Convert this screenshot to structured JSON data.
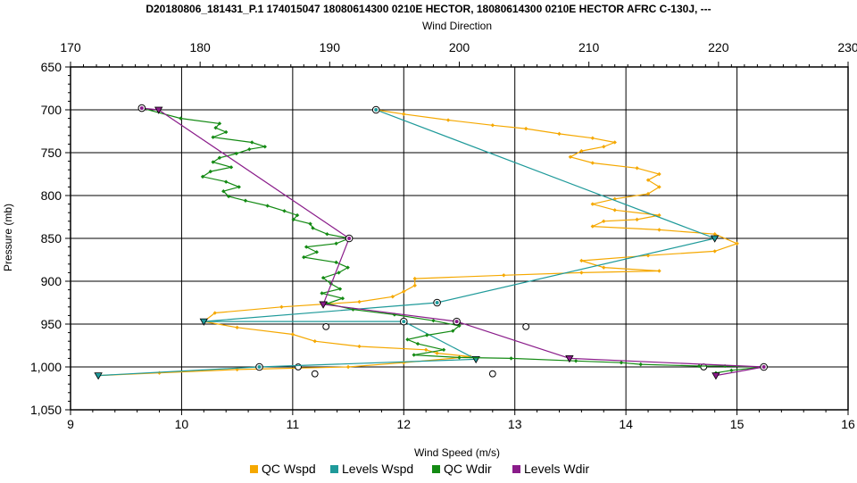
{
  "chart_data": {
    "type": "line",
    "title": "D20180806_181431_P.1 174015047 18080614300 0210E HECTOR, 18080614300 0210E HECTOR AFRC C-130J, ---",
    "x_bottom": {
      "label": "Wind Speed (m/s)",
      "range": [
        9,
        16
      ],
      "ticks": [
        "9",
        "10",
        "11",
        "12",
        "13",
        "14",
        "15",
        "16"
      ]
    },
    "x_top": {
      "label": "Wind Direction",
      "range": [
        170,
        230
      ],
      "ticks": [
        "170",
        "180",
        "190",
        "200",
        "210",
        "220",
        "230"
      ]
    },
    "y": {
      "label": "Pressure (mb)",
      "range": [
        650,
        1050
      ],
      "inverted": true,
      "ticks": [
        "650",
        "700",
        "750",
        "800",
        "850",
        "900",
        "950",
        "1,000",
        "1,050"
      ]
    },
    "grid": true,
    "legend_position": "bottom",
    "series": [
      {
        "name": "QC Wspd",
        "axis": "bottom",
        "color": "#f5a800",
        "points": [
          [
            11.75,
            700
          ],
          [
            12.0,
            705
          ],
          [
            12.4,
            712
          ],
          [
            12.8,
            718
          ],
          [
            13.1,
            722
          ],
          [
            13.4,
            728
          ],
          [
            13.7,
            733
          ],
          [
            13.9,
            738
          ],
          [
            13.8,
            743
          ],
          [
            13.6,
            748
          ],
          [
            13.5,
            755
          ],
          [
            13.7,
            762
          ],
          [
            14.1,
            768
          ],
          [
            14.3,
            775
          ],
          [
            14.2,
            782
          ],
          [
            14.3,
            790
          ],
          [
            14.2,
            798
          ],
          [
            13.9,
            804
          ],
          [
            13.7,
            810
          ],
          [
            13.9,
            817
          ],
          [
            14.3,
            823
          ],
          [
            14.1,
            828
          ],
          [
            13.8,
            830
          ],
          [
            13.7,
            836
          ],
          [
            14.3,
            840
          ],
          [
            14.8,
            845
          ],
          [
            15.0,
            856
          ],
          [
            14.8,
            865
          ],
          [
            14.2,
            870
          ],
          [
            13.6,
            876
          ],
          [
            13.8,
            884
          ],
          [
            14.3,
            888
          ],
          [
            13.6,
            890
          ],
          [
            12.9,
            893
          ],
          [
            12.1,
            897
          ],
          [
            12.1,
            905
          ],
          [
            12.0,
            912
          ],
          [
            11.9,
            918
          ],
          [
            11.6,
            924
          ],
          [
            10.9,
            930
          ],
          [
            10.3,
            937
          ],
          [
            10.2,
            947
          ],
          [
            10.5,
            954
          ],
          [
            11.0,
            962
          ],
          [
            11.2,
            970
          ],
          [
            11.6,
            976
          ],
          [
            12.2,
            980
          ],
          [
            12.3,
            984
          ],
          [
            12.6,
            988
          ],
          [
            12.0,
            995
          ],
          [
            11.5,
            1000
          ],
          [
            10.5,
            1003
          ],
          [
            9.8,
            1007
          ],
          [
            9.25,
            1010
          ]
        ],
        "open_markers": [
          [
            11.3,
            953
          ],
          [
            13.1,
            953
          ],
          [
            11.05,
            1000
          ],
          [
            11.2,
            1008
          ],
          [
            12.8,
            1008
          ],
          [
            14.7,
            1000
          ]
        ]
      },
      {
        "name": "Levels Wspd",
        "axis": "bottom",
        "color": "#1f9a9a",
        "points": [
          [
            11.75,
            700
          ],
          [
            14.8,
            850
          ],
          [
            12.3,
            925
          ],
          [
            10.2,
            947
          ],
          [
            12.0,
            947
          ],
          [
            12.65,
            991
          ],
          [
            10.7,
            1000
          ],
          [
            9.25,
            1010
          ]
        ]
      },
      {
        "name": "QC Wdir",
        "axis": "top",
        "color": "#138a13",
        "points": [
          [
            175.5,
            698
          ],
          [
            178.5,
            710
          ],
          [
            181.5,
            716
          ],
          [
            181.2,
            721
          ],
          [
            182.0,
            726
          ],
          [
            181.0,
            732
          ],
          [
            184.0,
            738
          ],
          [
            185.0,
            743
          ],
          [
            183.8,
            746
          ],
          [
            182.8,
            751
          ],
          [
            181.5,
            756
          ],
          [
            181.0,
            761
          ],
          [
            182.4,
            767
          ],
          [
            180.8,
            772
          ],
          [
            180.2,
            778
          ],
          [
            182.0,
            784
          ],
          [
            183.0,
            790
          ],
          [
            181.8,
            795
          ],
          [
            182.2,
            801
          ],
          [
            183.5,
            806
          ],
          [
            185.2,
            812
          ],
          [
            186.5,
            818
          ],
          [
            187.5,
            823
          ],
          [
            187.2,
            828
          ],
          [
            188.5,
            833
          ],
          [
            188.7,
            838
          ],
          [
            189.8,
            845
          ],
          [
            191.5,
            850
          ],
          [
            190.5,
            856
          ],
          [
            188.2,
            860
          ],
          [
            189.0,
            866
          ],
          [
            188.0,
            872
          ],
          [
            190.5,
            878
          ],
          [
            191.4,
            884
          ],
          [
            190.7,
            890
          ],
          [
            189.5,
            896
          ],
          [
            190.1,
            903
          ],
          [
            190.8,
            909
          ],
          [
            189.4,
            914
          ],
          [
            191.0,
            920
          ],
          [
            189.8,
            926
          ],
          [
            191.8,
            933
          ],
          [
            195.0,
            939
          ],
          [
            198.0,
            946
          ],
          [
            200.0,
            952
          ],
          [
            199.5,
            958
          ],
          [
            197.5,
            963
          ],
          [
            196.0,
            968
          ],
          [
            196.8,
            973
          ],
          [
            198.8,
            980
          ],
          [
            196.5,
            986
          ],
          [
            200.0,
            989
          ],
          [
            204.0,
            990
          ],
          [
            209.0,
            993
          ],
          [
            212.5,
            995
          ],
          [
            214.0,
            997
          ],
          [
            218.5,
            999
          ],
          [
            220.5,
            999
          ],
          [
            223.5,
            1000
          ],
          [
            221.0,
            1004
          ],
          [
            219.8,
            1007
          ]
        ]
      },
      {
        "name": "Levels Wdir",
        "axis": "top",
        "color": "#8a1c8a",
        "points": [
          [
            175.5,
            698
          ],
          [
            176.8,
            700
          ],
          [
            191.5,
            850
          ],
          [
            189.5,
            927
          ],
          [
            199.8,
            947
          ],
          [
            208.5,
            990
          ],
          [
            223.5,
            1000
          ],
          [
            219.8,
            1010
          ]
        ]
      }
    ]
  },
  "legend": {
    "items": [
      {
        "label": "QC Wspd",
        "color": "#f5a800"
      },
      {
        "label": "Levels Wspd",
        "color": "#1f9a9a"
      },
      {
        "label": "QC Wdir",
        "color": "#138a13"
      },
      {
        "label": "Levels Wdir",
        "color": "#8a1c8a"
      }
    ]
  }
}
